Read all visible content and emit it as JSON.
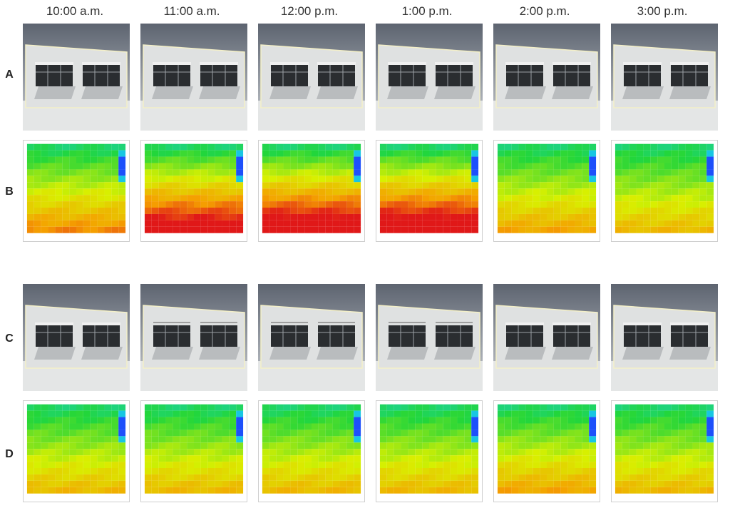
{
  "times": [
    "10:00 a.m.",
    "11:00 a.m.",
    "12:00 p.m.",
    "1:00 p.m.",
    "2:00 p.m.",
    "3:00 p.m."
  ],
  "rows": [
    {
      "label": "A",
      "kind": "render",
      "variant": "shade-open"
    },
    {
      "label": "B",
      "kind": "heatmap",
      "peak": [
        0.55,
        0.8,
        0.85,
        0.85,
        0.5,
        0.45
      ]
    },
    {
      "label": "C",
      "kind": "render",
      "variant": "shade-mixed"
    },
    {
      "label": "D",
      "kind": "heatmap",
      "peak": [
        0.45,
        0.45,
        0.45,
        0.45,
        0.5,
        0.45
      ]
    }
  ],
  "colors": {
    "low": "#1e3cff",
    "mid_low": "#18d0e0",
    "mid": "#22d63a",
    "mid_high": "#d8f000",
    "high": "#f5a000",
    "max": "#e01818"
  }
}
